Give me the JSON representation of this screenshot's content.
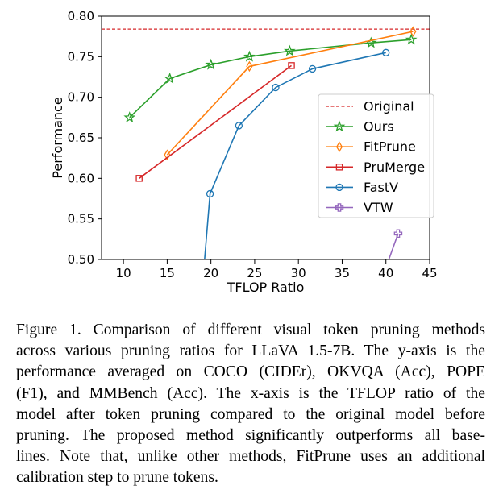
{
  "chart_data": {
    "type": "line",
    "title": "",
    "xlabel": "TFLOP Ratio",
    "ylabel": "Performance",
    "xlim": [
      7.5,
      45
    ],
    "ylim": [
      0.5,
      0.8
    ],
    "xticks": [
      10,
      15,
      20,
      25,
      30,
      35,
      40,
      45
    ],
    "yticks": [
      0.5,
      0.55,
      0.6,
      0.65,
      0.7,
      0.75,
      0.8
    ],
    "xtick_labels": [
      "10",
      "15",
      "20",
      "25",
      "30",
      "35",
      "40",
      "45"
    ],
    "ytick_labels": [
      "0.50",
      "0.55",
      "0.60",
      "0.65",
      "0.70",
      "0.75",
      "0.80"
    ],
    "grid": false,
    "legend_position": "center-right",
    "reference_line": {
      "name": "Original",
      "y": 0.784,
      "color": "#d62728",
      "style": "dashed"
    },
    "series": [
      {
        "name": "Ours",
        "color": "#2ca02c",
        "marker": "star",
        "x": [
          10.7,
          15.3,
          20.0,
          24.4,
          29.0,
          38.3,
          42.9
        ],
        "y": [
          0.675,
          0.723,
          0.74,
          0.75,
          0.757,
          0.767,
          0.771
        ]
      },
      {
        "name": "FitPrune",
        "color": "#ff7f0e",
        "marker": "thin_diamond",
        "x": [
          15.0,
          24.4,
          43.1
        ],
        "y": [
          0.629,
          0.738,
          0.781
        ]
      },
      {
        "name": "PruMerge",
        "color": "#d62728",
        "marker": "square",
        "x": [
          11.8,
          29.2
        ],
        "y": [
          0.6,
          0.739
        ]
      },
      {
        "name": "FastV",
        "color": "#1f77b4",
        "marker": "circle",
        "x": [
          19.2,
          19.9,
          23.2,
          27.4,
          31.6,
          40.0
        ],
        "y": [
          0.49,
          0.581,
          0.665,
          0.712,
          0.735,
          0.755
        ]
      },
      {
        "name": "VTW",
        "color": "#9467bd",
        "marker": "plus",
        "x": [
          40.0,
          41.4
        ],
        "y": [
          0.49,
          0.532
        ]
      }
    ]
  },
  "caption": {
    "lines": [
      "Figure 1.  Comparison of different visual token pruning methods",
      "across various pruning ratios for LLaVA 1.5-7B. The y-axis is the",
      "performance averaged on COCO (CIDEr), OKVQA (Acc), POPE",
      "(F1), and MMBench (Acc). The x-axis is the TFLOP ratio of the",
      "model after token pruning compared to the original model before",
      "pruning. The proposed method significantly outperforms all base-",
      "lines. Note that, unlike other methods, FitPrune uses an additional",
      "calibration step to prune tokens."
    ]
  }
}
